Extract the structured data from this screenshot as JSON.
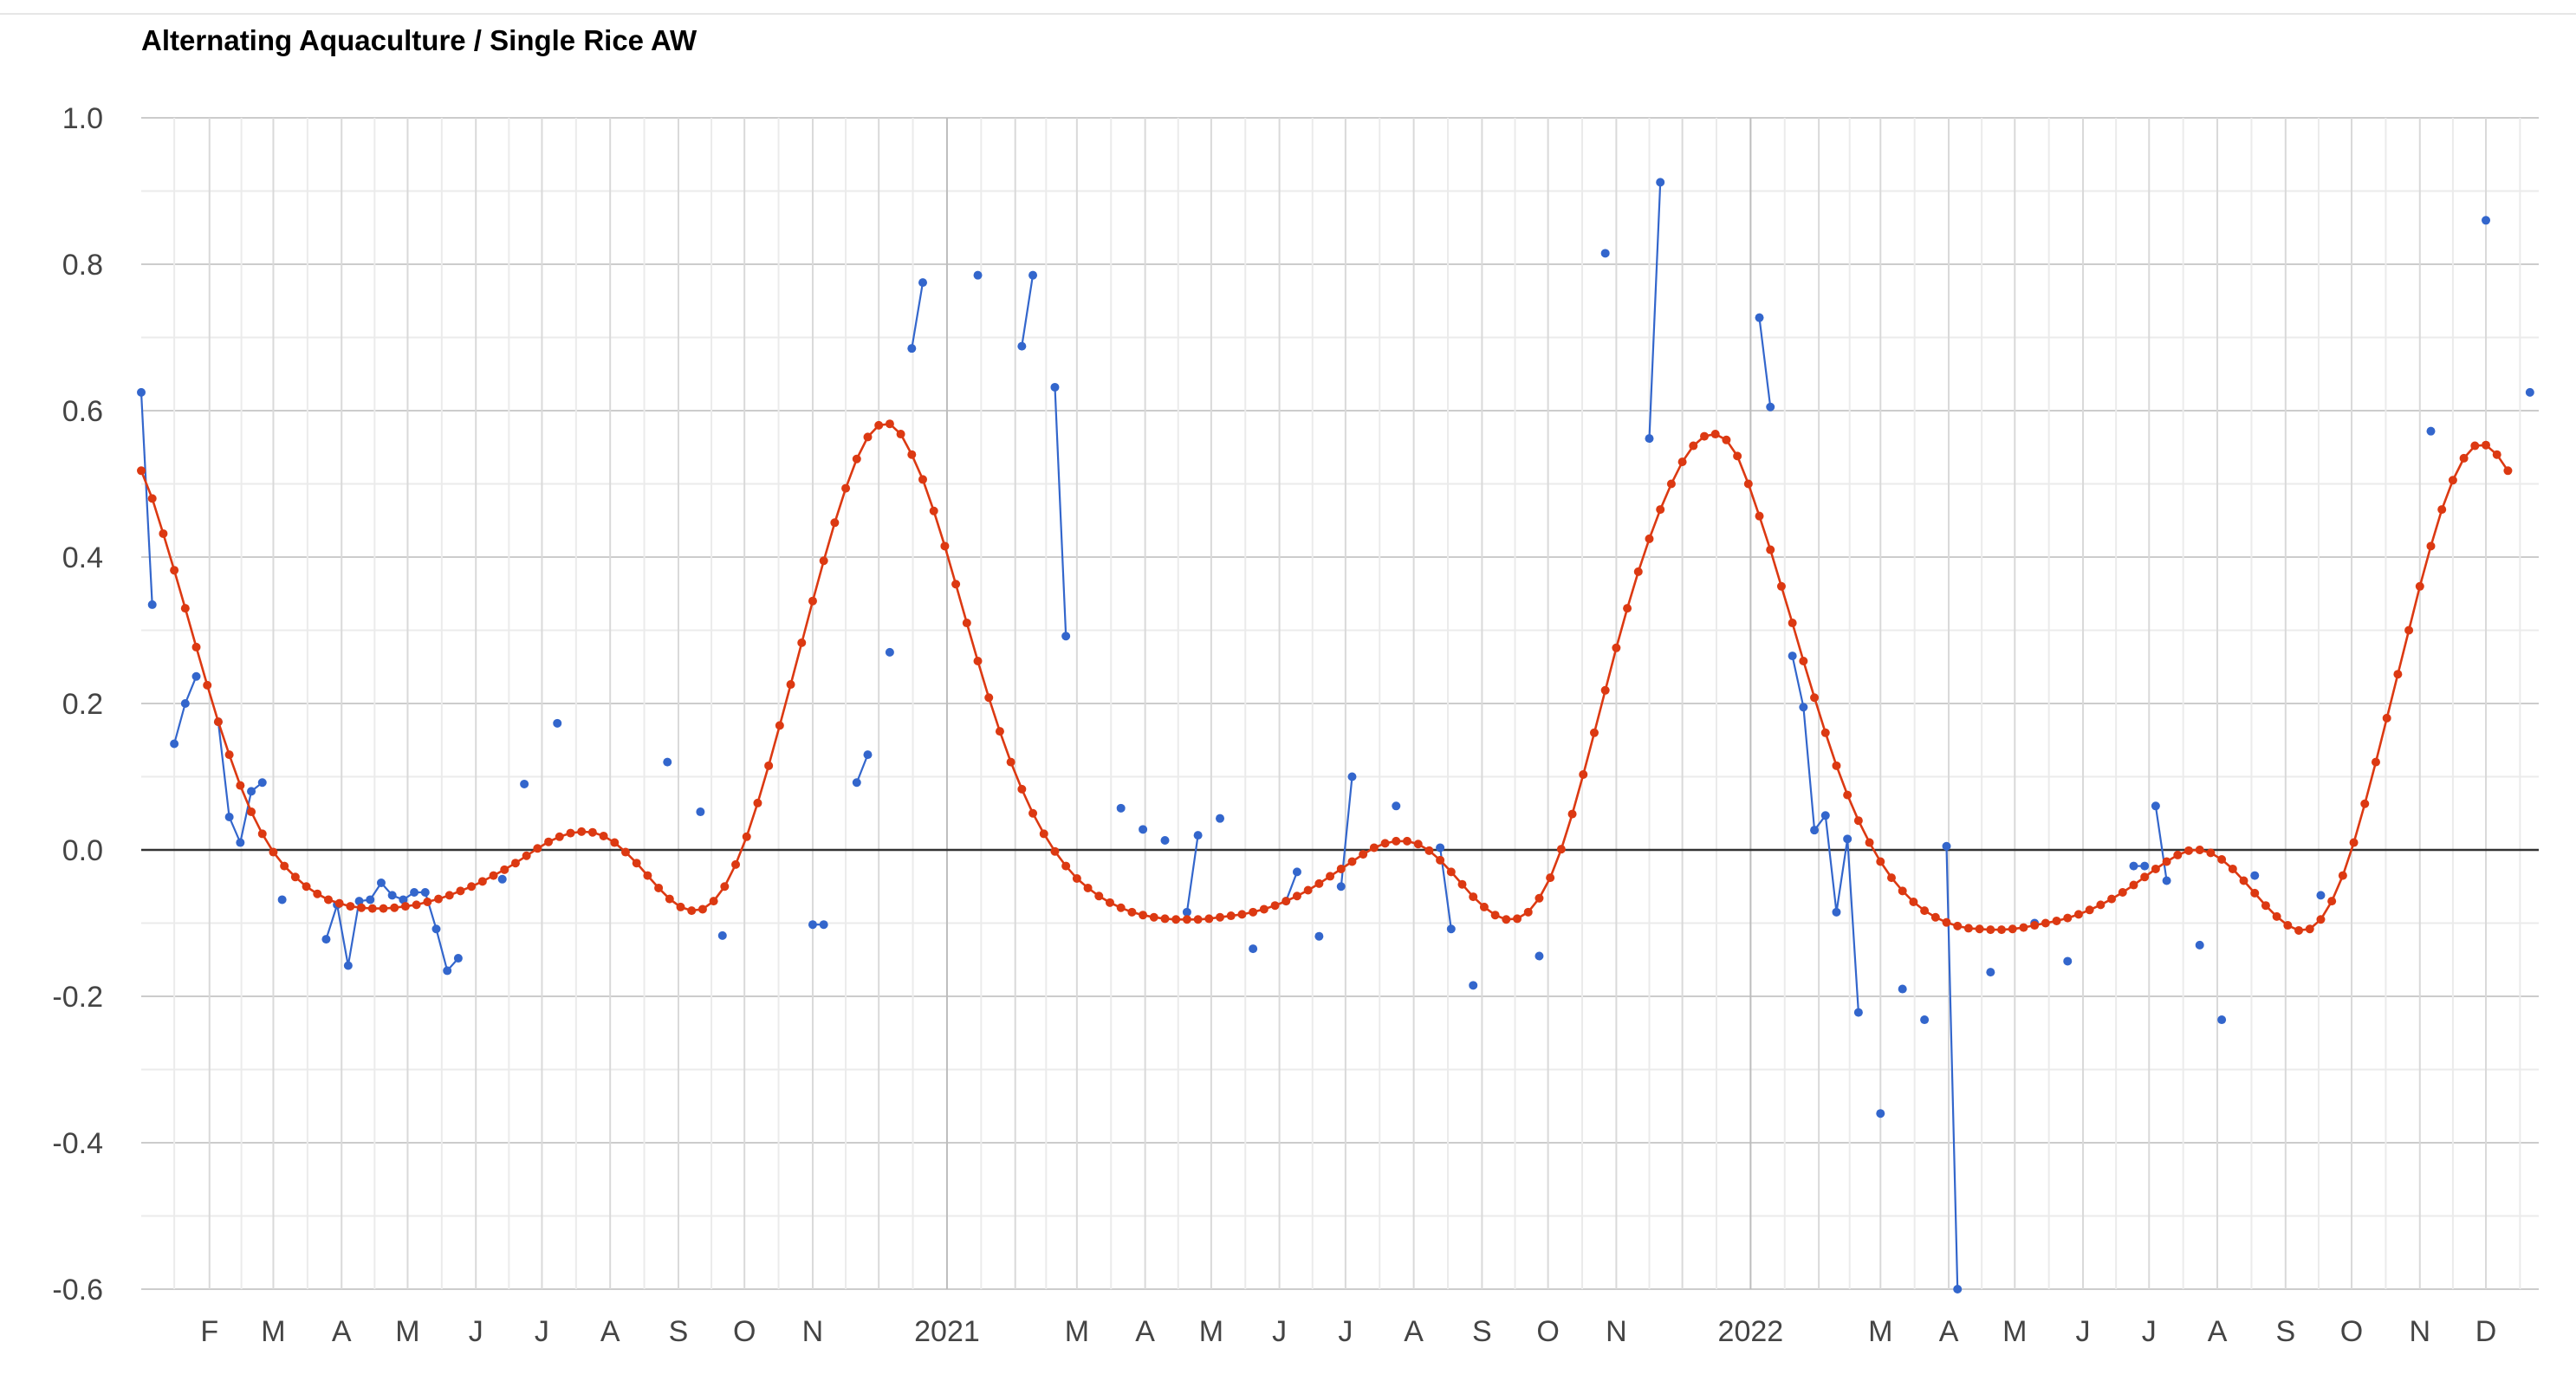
{
  "chart_data": {
    "type": "line",
    "title": "Alternating Aquaculture / Single Rice AW",
    "xlabel": "",
    "ylabel": "",
    "x_range": [
      "2020-01-01",
      "2022-12-25"
    ],
    "ylim": [
      -0.6,
      1.0
    ],
    "y_ticks": [
      "1.0",
      "0.8",
      "0.6",
      "0.4",
      "0.2",
      "0.0",
      "-0.2",
      "-0.4",
      "-0.6"
    ],
    "x_ticks": [
      {
        "date": "2020-02-01",
        "label": "F"
      },
      {
        "date": "2020-03-01",
        "label": "M"
      },
      {
        "date": "2020-04-01",
        "label": "A"
      },
      {
        "date": "2020-05-01",
        "label": "M"
      },
      {
        "date": "2020-06-01",
        "label": "J"
      },
      {
        "date": "2020-07-01",
        "label": "J"
      },
      {
        "date": "2020-08-01",
        "label": "A"
      },
      {
        "date": "2020-09-01",
        "label": "S"
      },
      {
        "date": "2020-10-01",
        "label": "O"
      },
      {
        "date": "2020-11-01",
        "label": "N"
      },
      {
        "date": "2021-01-01",
        "label": "2021"
      },
      {
        "date": "2021-03-01",
        "label": "M"
      },
      {
        "date": "2021-04-01",
        "label": "A"
      },
      {
        "date": "2021-05-01",
        "label": "M"
      },
      {
        "date": "2021-06-01",
        "label": "J"
      },
      {
        "date": "2021-07-01",
        "label": "J"
      },
      {
        "date": "2021-08-01",
        "label": "A"
      },
      {
        "date": "2021-09-01",
        "label": "S"
      },
      {
        "date": "2021-10-01",
        "label": "O"
      },
      {
        "date": "2021-11-01",
        "label": "N"
      },
      {
        "date": "2022-01-01",
        "label": "2022"
      },
      {
        "date": "2022-03-01",
        "label": "M"
      },
      {
        "date": "2022-04-01",
        "label": "A"
      },
      {
        "date": "2022-05-01",
        "label": "M"
      },
      {
        "date": "2022-06-01",
        "label": "J"
      },
      {
        "date": "2022-07-01",
        "label": "J"
      },
      {
        "date": "2022-08-01",
        "label": "A"
      },
      {
        "date": "2022-09-01",
        "label": "S"
      },
      {
        "date": "2022-10-01",
        "label": "O"
      },
      {
        "date": "2022-11-01",
        "label": "N"
      },
      {
        "date": "2022-12-01",
        "label": "D"
      }
    ],
    "grid": true,
    "legend": "none",
    "series": [
      {
        "color": "#3366cc",
        "style": "line-with-points",
        "segments": [
          [
            [
              "2020-01-01",
              0.625
            ],
            [
              "2020-01-06",
              0.335
            ]
          ],
          [
            [
              "2020-01-16",
              0.145
            ],
            [
              "2020-01-21",
              0.2
            ],
            [
              "2020-01-26",
              0.237
            ]
          ],
          [
            [
              "2020-02-05",
              0.175
            ],
            [
              "2020-02-10",
              0.045
            ],
            [
              "2020-02-15",
              0.01
            ],
            [
              "2020-02-20",
              0.08
            ],
            [
              "2020-02-25",
              0.092
            ]
          ],
          [
            [
              "2020-03-05",
              -0.068
            ]
          ],
          [
            [
              "2020-03-25",
              -0.122
            ],
            [
              "2020-03-30",
              -0.075
            ],
            [
              "2020-04-04",
              -0.158
            ],
            [
              "2020-04-09",
              -0.07
            ],
            [
              "2020-04-14",
              -0.068
            ],
            [
              "2020-04-19",
              -0.045
            ],
            [
              "2020-04-24",
              -0.062
            ],
            [
              "2020-04-29",
              -0.068
            ],
            [
              "2020-05-04",
              -0.058
            ],
            [
              "2020-05-09",
              -0.058
            ],
            [
              "2020-05-14",
              -0.108
            ],
            [
              "2020-05-19",
              -0.165
            ],
            [
              "2020-05-24",
              -0.148
            ]
          ],
          [
            [
              "2020-06-13",
              -0.04
            ]
          ],
          [
            [
              "2020-06-23",
              0.09
            ]
          ],
          [
            [
              "2020-07-08",
              0.173
            ]
          ],
          [
            [
              "2020-08-27",
              0.12
            ]
          ],
          [
            [
              "2020-09-11",
              0.052
            ]
          ],
          [
            [
              "2020-09-21",
              -0.117
            ]
          ],
          [
            [
              "2020-11-01",
              -0.102
            ],
            [
              "2020-11-06",
              -0.102
            ]
          ],
          [
            [
              "2020-11-21",
              0.092
            ],
            [
              "2020-11-26",
              0.13
            ]
          ],
          [
            [
              "2020-12-06",
              0.27
            ]
          ],
          [
            [
              "2020-12-16",
              0.685
            ],
            [
              "2020-12-21",
              0.775
            ]
          ],
          [
            [
              "2021-01-15",
              0.785
            ]
          ],
          [
            [
              "2021-02-04",
              0.688
            ],
            [
              "2021-02-09",
              0.785
            ]
          ],
          [
            [
              "2021-02-19",
              0.632
            ],
            [
              "2021-02-24",
              0.292
            ]
          ],
          [
            [
              "2021-03-21",
              0.057
            ]
          ],
          [
            [
              "2021-03-31",
              0.028
            ]
          ],
          [
            [
              "2021-04-10",
              0.013
            ]
          ],
          [
            [
              "2021-04-20",
              -0.085
            ],
            [
              "2021-04-25",
              0.02
            ]
          ],
          [
            [
              "2021-05-05",
              0.043
            ]
          ],
          [
            [
              "2021-05-20",
              -0.135
            ]
          ],
          [
            [
              "2021-06-04",
              -0.07
            ],
            [
              "2021-06-09",
              -0.03
            ]
          ],
          [
            [
              "2021-06-19",
              -0.118
            ]
          ],
          [
            [
              "2021-06-29",
              -0.05
            ],
            [
              "2021-07-04",
              0.1
            ]
          ],
          [
            [
              "2021-07-24",
              0.06
            ]
          ],
          [
            [
              "2021-08-13",
              0.003
            ],
            [
              "2021-08-18",
              -0.108
            ]
          ],
          [
            [
              "2021-08-28",
              -0.185
            ]
          ],
          [
            [
              "2021-09-27",
              -0.145
            ]
          ],
          [
            [
              "2021-10-27",
              0.815
            ]
          ],
          [
            [
              "2021-11-16",
              0.562
            ],
            [
              "2021-11-21",
              0.912
            ]
          ],
          [
            [
              "2022-01-05",
              0.727
            ],
            [
              "2022-01-10",
              0.605
            ]
          ],
          [
            [
              "2022-01-20",
              0.265
            ],
            [
              "2022-01-25",
              0.195
            ],
            [
              "2022-01-30",
              0.027
            ],
            [
              "2022-02-04",
              0.047
            ],
            [
              "2022-02-09",
              -0.085
            ],
            [
              "2022-02-14",
              0.015
            ],
            [
              "2022-02-19",
              -0.222
            ]
          ],
          [
            [
              "2022-03-01",
              -0.36
            ]
          ],
          [
            [
              "2022-03-11",
              -0.19
            ]
          ],
          [
            [
              "2022-03-21",
              -0.232
            ]
          ],
          [
            [
              "2022-03-31",
              0.005
            ],
            [
              "2022-04-05",
              -0.6
            ]
          ],
          [
            [
              "2022-04-20",
              -0.167
            ]
          ],
          [
            [
              "2022-05-10",
              -0.1
            ]
          ],
          [
            [
              "2022-05-25",
              -0.152
            ]
          ],
          [
            [
              "2022-06-24",
              -0.022
            ],
            [
              "2022-06-29",
              -0.022
            ]
          ],
          [
            [
              "2022-07-04",
              0.06
            ],
            [
              "2022-07-09",
              -0.042
            ]
          ],
          [
            [
              "2022-07-24",
              -0.13
            ]
          ],
          [
            [
              "2022-08-03",
              -0.232
            ]
          ],
          [
            [
              "2022-08-18",
              -0.035
            ]
          ],
          [
            [
              "2022-09-17",
              -0.062
            ]
          ],
          [
            [
              "2022-11-06",
              0.572
            ]
          ],
          [
            [
              "2022-12-01",
              0.86
            ]
          ],
          [
            [
              "2022-12-21",
              0.625
            ]
          ]
        ]
      },
      {
        "color": "#dc3912",
        "style": "line-with-points",
        "step_days": 5,
        "x_start": "2020-01-01",
        "values": [
          0.518,
          0.48,
          0.432,
          0.382,
          0.33,
          0.277,
          0.225,
          0.175,
          0.13,
          0.088,
          0.052,
          0.022,
          -0.003,
          -0.022,
          -0.037,
          -0.05,
          -0.06,
          -0.068,
          -0.073,
          -0.077,
          -0.079,
          -0.08,
          -0.08,
          -0.079,
          -0.077,
          -0.075,
          -0.071,
          -0.067,
          -0.062,
          -0.056,
          -0.05,
          -0.043,
          -0.035,
          -0.027,
          -0.018,
          -0.008,
          0.002,
          0.011,
          0.018,
          0.023,
          0.025,
          0.024,
          0.019,
          0.01,
          -0.003,
          -0.018,
          -0.035,
          -0.052,
          -0.067,
          -0.078,
          -0.083,
          -0.081,
          -0.07,
          -0.05,
          -0.02,
          0.018,
          0.064,
          0.115,
          0.17,
          0.226,
          0.283,
          0.34,
          0.395,
          0.447,
          0.494,
          0.534,
          0.564,
          0.58,
          0.582,
          0.568,
          0.54,
          0.506,
          0.463,
          0.415,
          0.363,
          0.31,
          0.258,
          0.208,
          0.162,
          0.12,
          0.083,
          0.05,
          0.022,
          -0.002,
          -0.022,
          -0.039,
          -0.052,
          -0.063,
          -0.072,
          -0.079,
          -0.085,
          -0.089,
          -0.092,
          -0.094,
          -0.095,
          -0.095,
          -0.095,
          -0.094,
          -0.092,
          -0.09,
          -0.088,
          -0.085,
          -0.081,
          -0.076,
          -0.07,
          -0.063,
          -0.055,
          -0.046,
          -0.036,
          -0.026,
          -0.016,
          -0.006,
          0.003,
          0.009,
          0.012,
          0.012,
          0.008,
          -0.001,
          -0.014,
          -0.03,
          -0.047,
          -0.064,
          -0.078,
          -0.089,
          -0.095,
          -0.094,
          -0.085,
          -0.066,
          -0.038,
          0.001,
          0.049,
          0.103,
          0.16,
          0.218,
          0.276,
          0.33,
          0.38,
          0.425,
          0.465,
          0.5,
          0.53,
          0.552,
          0.565,
          0.568,
          0.56,
          0.538,
          0.5,
          0.456,
          0.41,
          0.36,
          0.31,
          0.258,
          0.208,
          0.16,
          0.115,
          0.075,
          0.04,
          0.01,
          -0.016,
          -0.038,
          -0.056,
          -0.071,
          -0.083,
          -0.092,
          -0.099,
          -0.104,
          -0.107,
          -0.108,
          -0.109,
          -0.109,
          -0.108,
          -0.106,
          -0.103,
          -0.1,
          -0.097,
          -0.093,
          -0.088,
          -0.082,
          -0.075,
          -0.067,
          -0.058,
          -0.048,
          -0.037,
          -0.026,
          -0.016,
          -0.007,
          -0.001,
          0.0,
          -0.004,
          -0.013,
          -0.026,
          -0.042,
          -0.059,
          -0.076,
          -0.091,
          -0.103,
          -0.11,
          -0.108,
          -0.095,
          -0.07,
          -0.035,
          0.01,
          0.063,
          0.12,
          0.18,
          0.24,
          0.3,
          0.36,
          0.415,
          0.465,
          0.505,
          0.535,
          0.552,
          0.553,
          0.54,
          0.518
        ]
      }
    ]
  }
}
